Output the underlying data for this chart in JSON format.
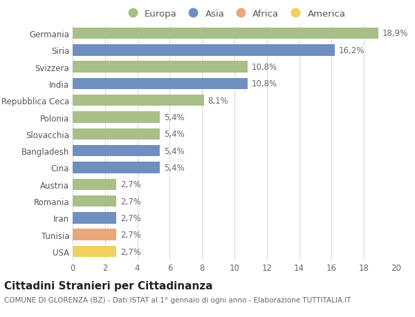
{
  "categories": [
    "USA",
    "Tunisia",
    "Iran",
    "Romania",
    "Austria",
    "Cina",
    "Bangladesh",
    "Slovacchia",
    "Polonia",
    "Repubblica Ceca",
    "India",
    "Svizzera",
    "Siria",
    "Germania"
  ],
  "values": [
    2.7,
    2.7,
    2.7,
    2.7,
    2.7,
    5.4,
    5.4,
    5.4,
    5.4,
    8.1,
    10.8,
    10.8,
    16.2,
    18.9
  ],
  "continents": [
    "America",
    "Africa",
    "Asia",
    "Europa",
    "Europa",
    "Asia",
    "Asia",
    "Europa",
    "Europa",
    "Europa",
    "Asia",
    "Europa",
    "Asia",
    "Europa"
  ],
  "bar_colors": {
    "Europa": "#a8bf87",
    "Asia": "#6f8fc0",
    "Africa": "#e8a87c",
    "America": "#f0d060"
  },
  "legend_order": [
    "Europa",
    "Asia",
    "Africa",
    "America"
  ],
  "labels": [
    "2,7%",
    "2,7%",
    "2,7%",
    "2,7%",
    "2,7%",
    "5,4%",
    "5,4%",
    "5,4%",
    "5,4%",
    "8,1%",
    "10,8%",
    "10,8%",
    "16,2%",
    "18,9%"
  ],
  "title": "Cittadini Stranieri per Cittadinanza",
  "subtitle": "COMUNE DI GLORENZA (BZ) - Dati ISTAT al 1° gennaio di ogni anno - Elaborazione TUTTITALIA.IT",
  "xlim": [
    0,
    20
  ],
  "xticks": [
    0,
    2,
    4,
    6,
    8,
    10,
    12,
    14,
    16,
    18,
    20
  ],
  "background_color": "#ffffff",
  "grid_color": "#d5d5d5",
  "bar_height": 0.68,
  "label_fontsize": 8.5,
  "tick_fontsize": 8.5,
  "title_fontsize": 11,
  "subtitle_fontsize": 7.5
}
